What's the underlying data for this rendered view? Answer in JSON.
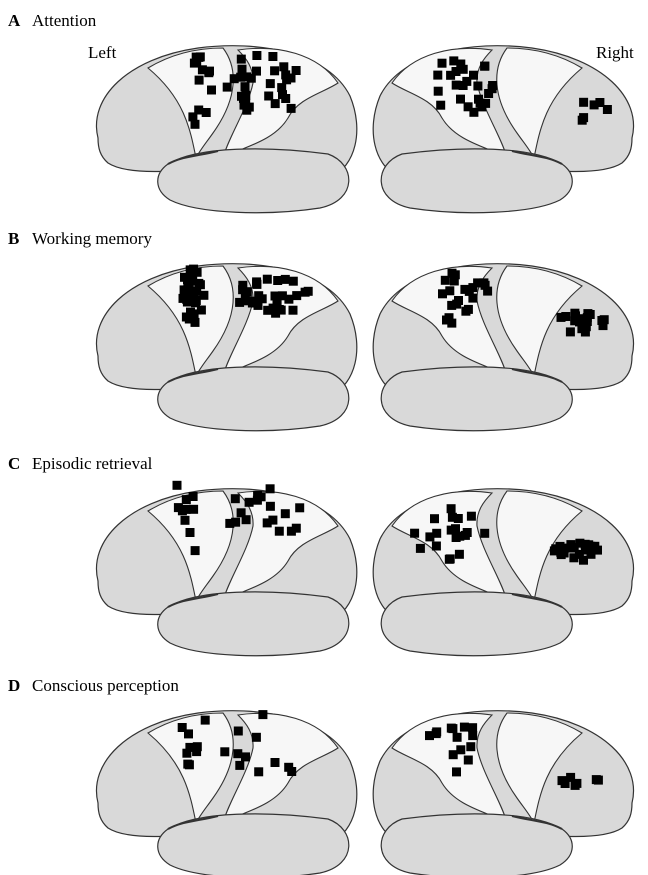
{
  "labels": {
    "left": "Left",
    "right": "Right"
  },
  "panels": [
    {
      "letter": "A",
      "title": "Attention"
    },
    {
      "letter": "B",
      "title": "Working memory"
    },
    {
      "letter": "C",
      "title": "Episodic retrieval"
    },
    {
      "letter": "D",
      "title": "Conscious perception"
    }
  ]
}
